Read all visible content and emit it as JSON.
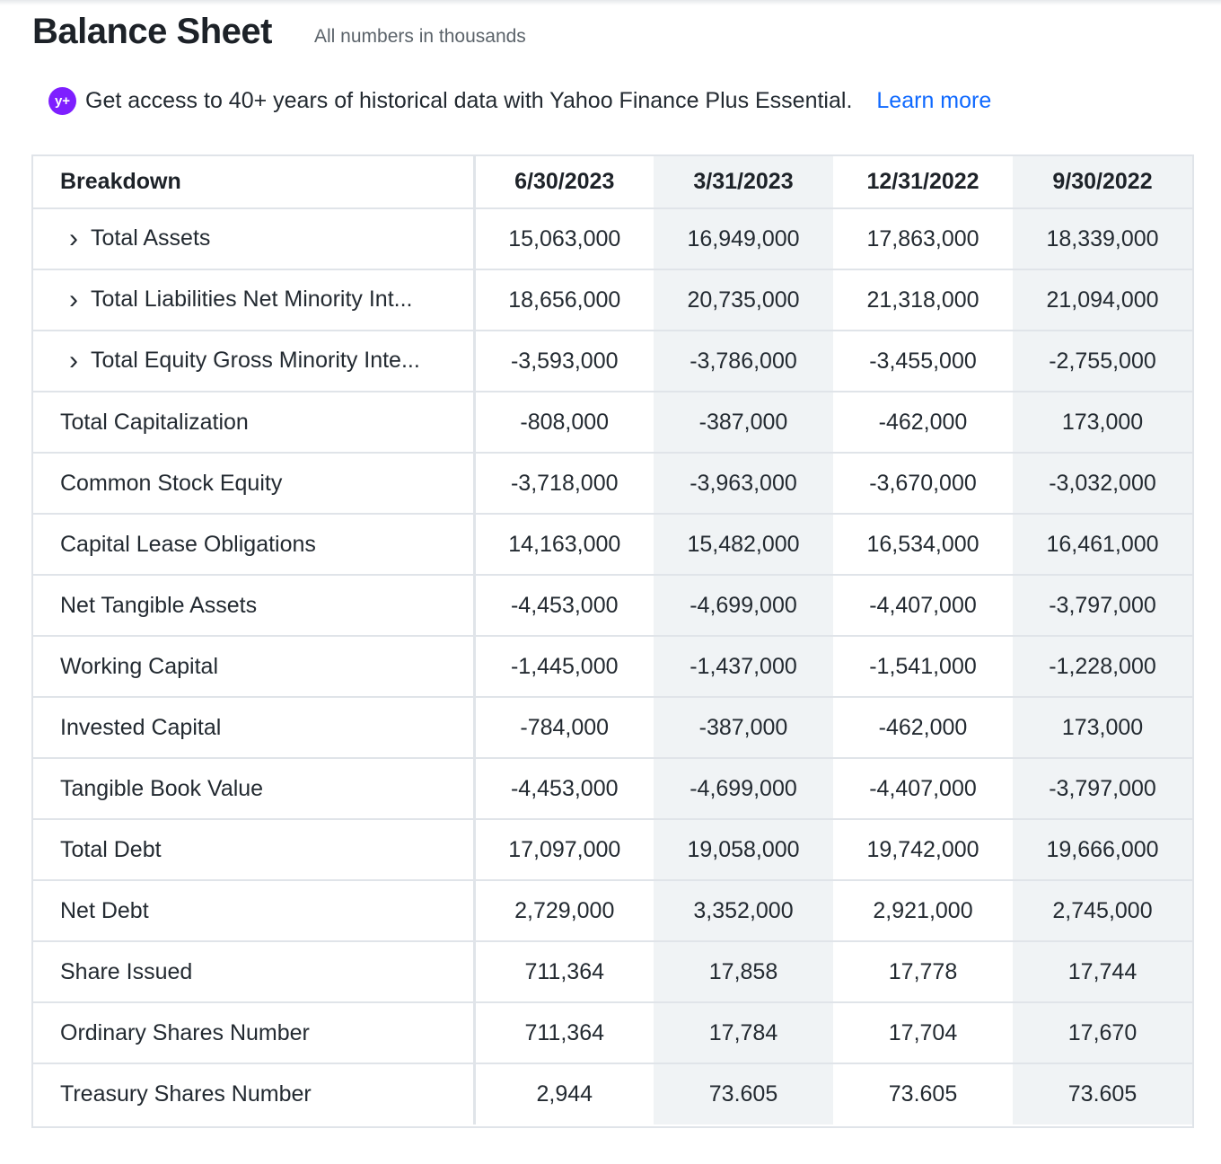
{
  "header": {
    "title": "Balance Sheet",
    "subtitle": "All numbers in thousands"
  },
  "promo": {
    "badge": "y+",
    "text": "Get access to 40+ years of historical data with Yahoo Finance Plus Essential.",
    "link_label": "Learn more"
  },
  "table": {
    "headers": [
      "Breakdown",
      "6/30/2023",
      "3/31/2023",
      "12/31/2022",
      "9/30/2022"
    ],
    "rows": [
      {
        "label": "Total Assets",
        "expandable": true,
        "values": [
          "15,063,000",
          "16,949,000",
          "17,863,000",
          "18,339,000"
        ]
      },
      {
        "label": "Total Liabilities Net Minority Int...",
        "expandable": true,
        "values": [
          "18,656,000",
          "20,735,000",
          "21,318,000",
          "21,094,000"
        ]
      },
      {
        "label": "Total Equity Gross Minority Inte...",
        "expandable": true,
        "values": [
          "-3,593,000",
          "-3,786,000",
          "-3,455,000",
          "-2,755,000"
        ]
      },
      {
        "label": "Total Capitalization",
        "expandable": false,
        "values": [
          "-808,000",
          "-387,000",
          "-462,000",
          "173,000"
        ]
      },
      {
        "label": "Common Stock Equity",
        "expandable": false,
        "values": [
          "-3,718,000",
          "-3,963,000",
          "-3,670,000",
          "-3,032,000"
        ]
      },
      {
        "label": "Capital Lease Obligations",
        "expandable": false,
        "values": [
          "14,163,000",
          "15,482,000",
          "16,534,000",
          "16,461,000"
        ]
      },
      {
        "label": "Net Tangible Assets",
        "expandable": false,
        "values": [
          "-4,453,000",
          "-4,699,000",
          "-4,407,000",
          "-3,797,000"
        ]
      },
      {
        "label": "Working Capital",
        "expandable": false,
        "values": [
          "-1,445,000",
          "-1,437,000",
          "-1,541,000",
          "-1,228,000"
        ]
      },
      {
        "label": "Invested Capital",
        "expandable": false,
        "values": [
          "-784,000",
          "-387,000",
          "-462,000",
          "173,000"
        ]
      },
      {
        "label": "Tangible Book Value",
        "expandable": false,
        "values": [
          "-4,453,000",
          "-4,699,000",
          "-4,407,000",
          "-3,797,000"
        ]
      },
      {
        "label": "Total Debt",
        "expandable": false,
        "values": [
          "17,097,000",
          "19,058,000",
          "19,742,000",
          "19,666,000"
        ]
      },
      {
        "label": "Net Debt",
        "expandable": false,
        "values": [
          "2,729,000",
          "3,352,000",
          "2,921,000",
          "2,745,000"
        ]
      },
      {
        "label": "Share Issued",
        "expandable": false,
        "values": [
          "711,364",
          "17,858",
          "17,778",
          "17,744"
        ]
      },
      {
        "label": "Ordinary Shares Number",
        "expandable": false,
        "values": [
          "711,364",
          "17,784",
          "17,704",
          "17,670"
        ]
      },
      {
        "label": "Treasury Shares Number",
        "expandable": false,
        "values": [
          "2,944",
          "73.605",
          "73.605",
          "73.605"
        ]
      }
    ]
  }
}
